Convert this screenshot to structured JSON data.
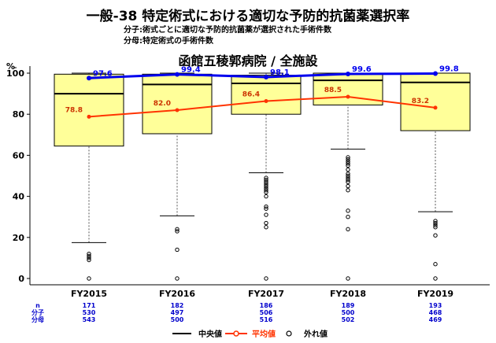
{
  "title": "一般-38 特定術式における適切な予防的抗菌薬選択率",
  "numerator_note": "分子:術式ごとに適切な予防的抗菌薬が選択された手術件数",
  "denominator_note": "分母:特定術式の手術件数",
  "chart_data": {
    "type": "box",
    "subtitle": "函館五稜郭病院 / 全施設",
    "ylabel": "%",
    "ylim": [
      0,
      100
    ],
    "yticks": [
      "0",
      "20",
      "40",
      "60",
      "80",
      "100"
    ],
    "categories": [
      "FY2015",
      "FY2016",
      "FY2017",
      "FY2018",
      "FY2019"
    ],
    "boxes": [
      {
        "q1": 64.5,
        "median": 90.0,
        "q3": 99.5,
        "whisker_low": 17.5,
        "whisker_high": 100,
        "outliers": [
          0,
          9,
          10,
          11,
          12
        ]
      },
      {
        "q1": 70.5,
        "median": 94.5,
        "q3": 99.5,
        "whisker_low": 30.5,
        "whisker_high": 100,
        "outliers": [
          0,
          14,
          23,
          24
        ]
      },
      {
        "q1": 80.0,
        "median": 95.0,
        "q3": 99.0,
        "whisker_low": 51.5,
        "whisker_high": 100,
        "outliers": [
          0,
          25,
          27,
          31,
          34,
          35,
          40,
          42,
          43,
          44,
          45,
          46,
          47,
          48,
          49
        ]
      },
      {
        "q1": 84.5,
        "median": 96.5,
        "q3": 100,
        "whisker_low": 63.0,
        "whisker_high": 100,
        "outliers": [
          0,
          24,
          30,
          33,
          43,
          45,
          47,
          48,
          49,
          50,
          51,
          53,
          55,
          56,
          57,
          58,
          59
        ]
      },
      {
        "q1": 72.0,
        "median": 95.5,
        "q3": 100,
        "whisker_low": 32.5,
        "whisker_high": 100,
        "outliers": [
          0,
          7,
          21,
          25,
          26,
          27,
          28
        ]
      }
    ],
    "series": [
      {
        "name": "中央値",
        "role": "hospital",
        "values": [
          97.6,
          99.4,
          98.1,
          99.6,
          99.8
        ],
        "labels": [
          "97.6",
          "99.4",
          "98.1",
          "99.6",
          "99.8"
        ],
        "color": "#0000ee"
      },
      {
        "name": "平均値",
        "role": "mean",
        "values": [
          78.8,
          82.0,
          86.4,
          88.5,
          83.2
        ],
        "labels": [
          "78.8",
          "82.0",
          "86.4",
          "88.5",
          "83.2"
        ],
        "color": "#ff3300"
      }
    ],
    "legend": {
      "position": "bottom",
      "median_label": "中央値",
      "mean_label": "平均値",
      "outlier_label": "外れ値"
    },
    "table": {
      "row_labels": [
        "n",
        "分子",
        "分母"
      ],
      "rows": [
        [
          "171",
          "182",
          "186",
          "189",
          "193"
        ],
        [
          "530",
          "497",
          "506",
          "500",
          "468"
        ],
        [
          "543",
          "500",
          "516",
          "502",
          "469"
        ]
      ],
      "color": "#0000cc"
    },
    "box_fill": "#ffff99"
  }
}
